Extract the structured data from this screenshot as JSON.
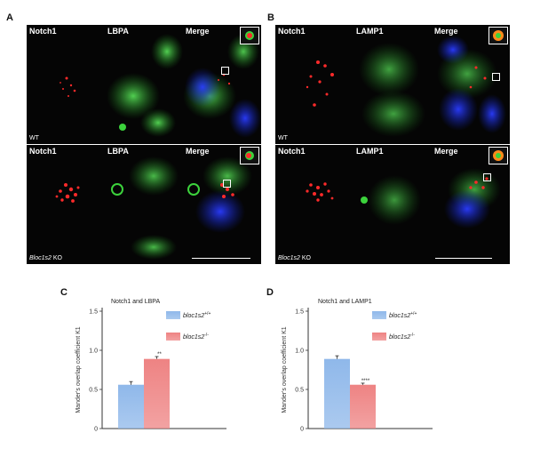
{
  "panels": {
    "A": {
      "letter": "A",
      "channels": [
        "Notch1",
        "LBPA",
        "Merge"
      ],
      "rows": [
        {
          "label": "WT"
        },
        {
          "label_gene": "Bloc1s2",
          "label_suffix": " KO"
        }
      ]
    },
    "B": {
      "letter": "B",
      "channels": [
        "Notch1",
        "LAMP1",
        "Merge"
      ],
      "rows": [
        {
          "label": "WT"
        },
        {
          "label_gene": "Bloc1s2",
          "label_suffix": " KO"
        }
      ]
    },
    "C": {
      "letter": "C"
    },
    "D": {
      "letter": "D"
    }
  },
  "colors": {
    "wt_bar": "#8fb8ea",
    "ko_bar": "#ee8383",
    "red_signal": "#ff2a2a",
    "green_signal": "#3cd23c",
    "blue_signal": "#2a3cff"
  },
  "chart_data": [
    {
      "type": "bar",
      "title": "Notch1 and LBPA",
      "ylabel": "Mander's overlap coefficient K1",
      "ylim": [
        0,
        1.5
      ],
      "yticks": [
        "0",
        "0.5",
        "1.0",
        "1.5"
      ],
      "legend_position": "top-right",
      "series": [
        {
          "name": "bloc1s2+/+",
          "name_base": "bloc1s2",
          "name_sup": "+/+",
          "value": 0.56,
          "error": 0.04,
          "annotation": ""
        },
        {
          "name": "bloc1s2-/-",
          "name_base": "bloc1s2",
          "name_sup": "-/-",
          "value": 0.89,
          "error": 0.03,
          "annotation": "**"
        }
      ]
    },
    {
      "type": "bar",
      "title": "Notch1 and LAMP1",
      "ylabel": "Mander's overlap coefficient K1",
      "ylim": [
        0,
        1.5
      ],
      "yticks": [
        "0",
        "0.5",
        "1.0",
        "1.5"
      ],
      "legend_position": "top-right",
      "series": [
        {
          "name": "bloc1s2+/+",
          "name_base": "bloc1s2",
          "name_sup": "+/+",
          "value": 0.89,
          "error": 0.04,
          "annotation": ""
        },
        {
          "name": "bloc1s2-/-",
          "name_base": "bloc1s2",
          "name_sup": "-/-",
          "value": 0.56,
          "error": 0.02,
          "annotation": "****"
        }
      ]
    }
  ]
}
